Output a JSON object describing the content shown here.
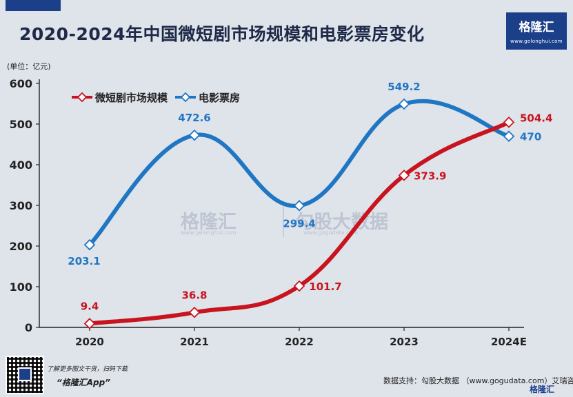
{
  "header": {
    "title": "2020-2024年中国微短剧市场规模和电影票房变化",
    "unit": "(单位：亿元)"
  },
  "brand": {
    "logo_name": "格隆汇",
    "logo_url": "www.gelonghui.com",
    "watermark_left": "格隆汇",
    "watermark_left_url": "www.gelonghui.com",
    "watermark_right": "勾股大数据",
    "watermark_right_url": "www.gogudata.com",
    "color": "#1c3f8a"
  },
  "footer": {
    "promo_line1": "了解更多图文干货，扫码下载",
    "promo_line2": "“格隆汇App”",
    "source": "数据支持：勾股大数据 （www.gogudata.com）艾瑞咨询",
    "bottom_logo": "格隆汇"
  },
  "chart_data": {
    "type": "line",
    "categories": [
      "2020",
      "2021",
      "2022",
      "2023",
      "2024E"
    ],
    "ylim": [
      0,
      600
    ],
    "yticks": [
      0,
      100,
      200,
      300,
      400,
      500,
      600
    ],
    "grid": false,
    "legend_position": "top-left",
    "series": [
      {
        "name": "微短剧市场规模",
        "values": [
          9.4,
          36.8,
          101.7,
          373.9,
          504.4
        ],
        "color": "#c8141e",
        "labels": [
          "9.4",
          "36.8",
          "101.7",
          "373.9",
          "504.4"
        ]
      },
      {
        "name": "电影票房",
        "values": [
          203.1,
          472.6,
          299.4,
          549.2,
          470
        ],
        "color": "#1f77c4",
        "labels": [
          "203.1",
          "472.6",
          "299.4",
          "549.2",
          "470"
        ]
      }
    ]
  }
}
